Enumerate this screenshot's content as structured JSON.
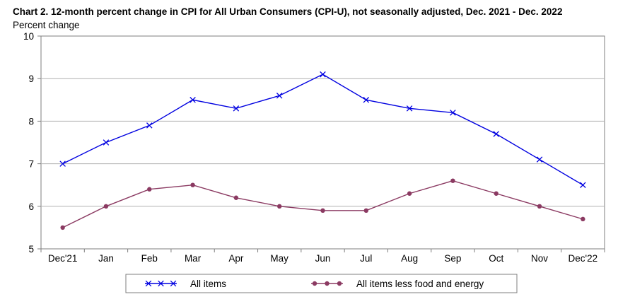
{
  "chart_data": {
    "type": "line",
    "title": "Chart 2. 12-month percent change in CPI for All Urban Consumers (CPI-U), not seasonally adjusted, Dec. 2021 - Dec. 2022",
    "ylabel": "Percent change",
    "xlabel": "",
    "categories": [
      "Dec'21",
      "Jan",
      "Feb",
      "Mar",
      "Apr",
      "May",
      "Jun",
      "Jul",
      "Aug",
      "Sep",
      "Oct",
      "Nov",
      "Dec'22"
    ],
    "ylim": [
      5,
      10
    ],
    "yticks": [
      5,
      6,
      7,
      8,
      9,
      10
    ],
    "grid": true,
    "legend_position": "bottom",
    "series": [
      {
        "name": "All items",
        "marker": "x",
        "color": "#0000e0",
        "values": [
          7.0,
          7.5,
          7.9,
          8.5,
          8.3,
          8.6,
          9.1,
          8.5,
          8.3,
          8.2,
          7.7,
          7.1,
          6.5
        ]
      },
      {
        "name": "All items less food and energy",
        "marker": "dot",
        "color": "#8b3a62",
        "values": [
          5.5,
          6.0,
          6.4,
          6.5,
          6.2,
          6.0,
          5.9,
          5.9,
          6.3,
          6.6,
          6.3,
          6.0,
          5.7
        ]
      }
    ]
  }
}
